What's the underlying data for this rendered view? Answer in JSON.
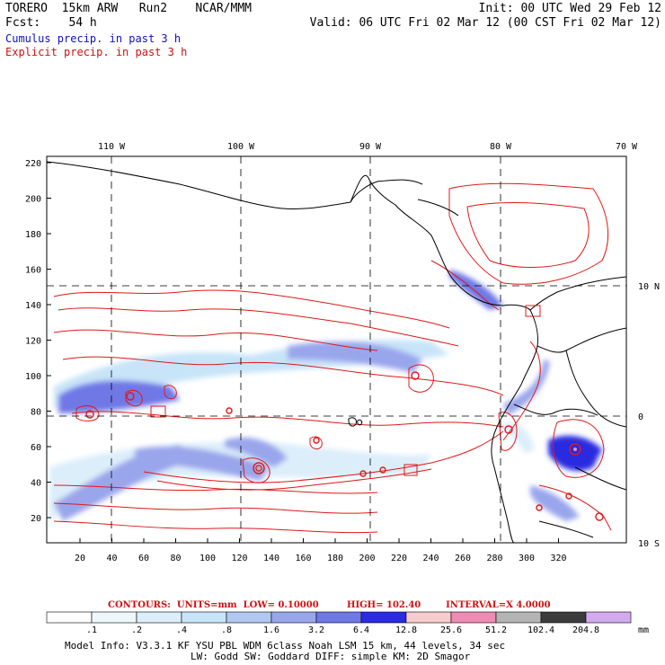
{
  "header": {
    "model": "TORERO",
    "grid": "15km ARW",
    "run": "Run2",
    "org": "NCAR/MMM",
    "init": "Init: 00 UTC Wed 29 Feb 12",
    "fcst_label": "Fcst:",
    "fcst_value": "54 h",
    "valid": "Valid: 06 UTC Fri 02 Mar 12 (00 CST Fri 02 Mar 12)",
    "cumulus_title": "Cumulus precip. in past 3 h",
    "explicit_title": "Explicit precip. in past 3 h"
  },
  "axes": {
    "top_lon": [
      "110 W",
      "100 W",
      "90 W",
      "80 W",
      "70 W"
    ],
    "right_lat": [
      "10 N",
      "0",
      "10 S"
    ],
    "left_y": [
      "220",
      "200",
      "180",
      "160",
      "140",
      "120",
      "100",
      "80",
      "60",
      "40",
      "20"
    ],
    "bottom_x": [
      "20",
      "40",
      "60",
      "80",
      "100",
      "120",
      "140",
      "160",
      "180",
      "200",
      "220",
      "240",
      "260",
      "280",
      "300",
      "320"
    ]
  },
  "contours_line": {
    "label": "CONTOURS:",
    "units": "UNITS=mm",
    "low": "LOW= 0.10000",
    "high": "HIGH= 102.40",
    "interval": "INTERVAL=X 4.0000"
  },
  "colorbar": {
    "labels": [
      ".1",
      ".2",
      ".4",
      ".8",
      "1.6",
      "3.2",
      "6.4",
      "12.8",
      "25.6",
      "51.2",
      "102.4",
      "204.8"
    ],
    "unit": "mm",
    "colors": [
      "#ffffff",
      "#eef7fc",
      "#dceefa",
      "#c8e4f8",
      "#b2c8f0",
      "#9aa6ec",
      "#6f78e6",
      "#2b2be0",
      "#f7cccc",
      "#f08bb4",
      "#b4b4b4",
      "#3c3c3c",
      "#d4aaee"
    ]
  },
  "footer": {
    "line1": "Model Info: V3.3.1 KF YSU PBL WDM 6class Noah LSM 15 km, 44 levels, 34 sec",
    "line2": "LW: Godd SW: Goddard DIFF: simple KM: 2D Smagor"
  },
  "map_colors": {
    "cumulus": "#3a46e6",
    "explicit": "#e01818",
    "coast": "#000000",
    "grid": "#000000"
  }
}
